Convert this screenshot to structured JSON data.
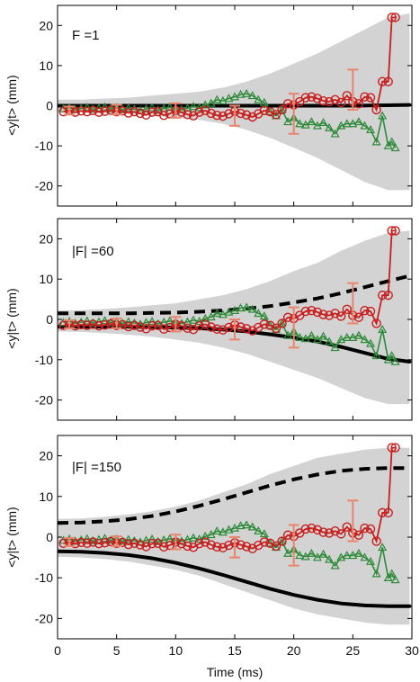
{
  "chart_data": {
    "type": "line",
    "xlabel": "Time (ms)",
    "ylabel": "<y|t> (mm)",
    "xlim": [
      0,
      30
    ],
    "ylim": [
      -25,
      25
    ],
    "x_ticks": [
      0,
      5,
      10,
      15,
      20,
      25,
      30
    ],
    "y_ticks": [
      -20,
      -10,
      0,
      10,
      20
    ],
    "grid": false,
    "colors": {
      "envelope": "#d3d3d3",
      "red_series": "#c81e1e",
      "green_series": "#2e8b3a",
      "error_bars": "#e8856b",
      "black_lines": "#000000"
    },
    "errorbars": {
      "x": [
        1,
        5,
        10,
        15,
        20,
        25
      ],
      "y": [
        -1.2,
        -1.0,
        -1.2,
        -2.5,
        -2,
        4
      ],
      "err": [
        1,
        1.2,
        1.8,
        2.5,
        5,
        5
      ]
    },
    "red_series": {
      "x": [
        0.5,
        1,
        1.5,
        2,
        2.5,
        3,
        3.5,
        4,
        4.5,
        5,
        5.5,
        6,
        6.5,
        7,
        7.5,
        8,
        8.5,
        9,
        9.5,
        10,
        10.5,
        11,
        11.5,
        12,
        12.5,
        13,
        13.5,
        14,
        14.5,
        15,
        15.5,
        16,
        16.5,
        17,
        17.5,
        18,
        18.5,
        19,
        19.5,
        20,
        20.5,
        21,
        21.5,
        22,
        22.5,
        23,
        23.5,
        24,
        24.5,
        25,
        25.5,
        26,
        26.5,
        27,
        27.5,
        28,
        28.3,
        28.6
      ],
      "y": [
        -1.5,
        -1.2,
        -1.6,
        -1.3,
        -1.5,
        -1.2,
        -1.6,
        -1.4,
        -1.1,
        -1.5,
        -1.3,
        -1.8,
        -1.5,
        -1.9,
        -2.3,
        -1.6,
        -1.5,
        -2.4,
        -2.0,
        -1.2,
        -1.6,
        -2.2,
        -2.5,
        -1.6,
        -1.2,
        -1.9,
        -2.4,
        -2.6,
        -2.0,
        -1.4,
        -1.9,
        -2.3,
        -2.8,
        -2.0,
        -1.2,
        -1.5,
        -2.2,
        -1.0,
        0.5,
        0.2,
        1.0,
        2.0,
        2.2,
        1.8,
        1.2,
        1.0,
        1.5,
        0.8,
        2.5,
        1.0,
        0.5,
        2.2,
        2.0,
        -1.0,
        6.0,
        6.0,
        22.0,
        22.0
      ]
    },
    "green_series": {
      "x": [
        0.5,
        1,
        1.5,
        2,
        2.5,
        3,
        3.5,
        4,
        4.5,
        5,
        5.5,
        6,
        6.5,
        7,
        7.5,
        8,
        8.5,
        9,
        9.5,
        10,
        10.5,
        11,
        11.5,
        12,
        12.5,
        13,
        13.5,
        14,
        14.5,
        15,
        15.5,
        16,
        16.5,
        17,
        17.5,
        18,
        18.5,
        19,
        19.5,
        20,
        20.5,
        21,
        21.5,
        22,
        22.5,
        23,
        23.5,
        24,
        24.5,
        25,
        25.5,
        26,
        26.5,
        27,
        27.5,
        28,
        28.3,
        28.6
      ],
      "y": [
        -0.8,
        -0.5,
        -1.0,
        -0.7,
        -0.4,
        -0.9,
        -0.6,
        -0.3,
        -0.8,
        -0.5,
        -1.0,
        -0.6,
        -0.9,
        -1.2,
        -0.8,
        -0.5,
        -1.1,
        -0.7,
        -0.4,
        -0.9,
        -1.0,
        -0.6,
        -0.2,
        -0.5,
        0.2,
        0.6,
        1.5,
        1.2,
        1.8,
        2.2,
        2.8,
        3.0,
        2.5,
        1.5,
        0.8,
        -1.5,
        -2.5,
        -1.0,
        -4.0,
        -3.0,
        -4.5,
        -4.8,
        -4.0,
        -5.0,
        -4.2,
        -5.5,
        -7.0,
        -5.0,
        -4.5,
        -4.5,
        -4.0,
        -5.0,
        -6.0,
        -9.0,
        -2.5,
        -10.0,
        -9.0,
        -10.5
      ]
    },
    "panels": [
      {
        "label": "F =1",
        "envelope": {
          "x": [
            0,
            2,
            4,
            6,
            8,
            10,
            12,
            14,
            16,
            18,
            20,
            22,
            24,
            26,
            28,
            29.8
          ],
          "upper": [
            1.5,
            1.5,
            1.8,
            2,
            2.5,
            3,
            3.5,
            4.5,
            6,
            8,
            10.5,
            13,
            16,
            19,
            22,
            23
          ],
          "lower": [
            -1.5,
            -1.5,
            -1.8,
            -2,
            -2.5,
            -3,
            -3.5,
            -4.5,
            -6,
            -8,
            -10.5,
            -13,
            -16,
            -19,
            -21,
            -21
          ]
        },
        "black_solid": {
          "x": [
            0,
            5,
            10,
            15,
            20,
            25,
            29.8
          ],
          "y": [
            0,
            0,
            0,
            0,
            0,
            0,
            0.2
          ]
        },
        "black_dashed": null
      },
      {
        "label": "|F| =60",
        "envelope": {
          "x": [
            0,
            2,
            4,
            6,
            8,
            10,
            12,
            14,
            16,
            18,
            20,
            22,
            24,
            26,
            28,
            29.8
          ],
          "upper": [
            2.2,
            2.3,
            2.6,
            3.0,
            3.5,
            4,
            5,
            6,
            7.5,
            9.5,
            12,
            14,
            17,
            19.5,
            21.5,
            22
          ],
          "lower": [
            -3,
            -3.1,
            -3.4,
            -3.8,
            -4.3,
            -5,
            -5.8,
            -7,
            -8.5,
            -10.5,
            -12.5,
            -14.5,
            -17,
            -19.5,
            -21,
            -21
          ]
        },
        "black_solid": {
          "x": [
            0,
            2,
            4,
            6,
            8,
            10,
            12,
            14,
            16,
            18,
            20,
            22,
            24,
            26,
            28,
            29.8
          ],
          "y": [
            -1.8,
            -1.8,
            -1.8,
            -1.8,
            -1.9,
            -2.0,
            -2.2,
            -2.5,
            -3.0,
            -3.7,
            -4.5,
            -5.5,
            -6.8,
            -8.3,
            -9.8,
            -10.5
          ]
        },
        "black_dashed": {
          "x": [
            0,
            2,
            4,
            6,
            8,
            10,
            12,
            14,
            16,
            18,
            20,
            22,
            24,
            26,
            28,
            29.8
          ],
          "y": [
            1.5,
            1.5,
            1.5,
            1.5,
            1.6,
            1.7,
            1.9,
            2.2,
            2.7,
            3.3,
            4.2,
            5.2,
            6.5,
            8.0,
            9.5,
            10.8
          ]
        }
      },
      {
        "label": "|F| =150",
        "envelope": {
          "x": [
            0,
            2,
            4,
            6,
            8,
            10,
            12,
            14,
            16,
            18,
            20,
            22,
            24,
            26,
            28,
            29.8
          ],
          "upper": [
            4.5,
            4.6,
            5,
            5.6,
            6.4,
            7.5,
            9,
            11,
            13,
            15.5,
            17.5,
            19.5,
            20.5,
            21.5,
            22,
            22
          ],
          "lower": [
            -4.8,
            -5,
            -5.4,
            -6,
            -7,
            -8,
            -9.5,
            -11.5,
            -13.5,
            -15.5,
            -17.5,
            -19,
            -20,
            -21,
            -21.5,
            -21.5
          ]
        },
        "black_solid": {
          "x": [
            0,
            2,
            4,
            6,
            8,
            10,
            12,
            14,
            16,
            18,
            20,
            22,
            24,
            26,
            28,
            29.8
          ],
          "y": [
            -3.5,
            -3.6,
            -3.9,
            -4.4,
            -5.2,
            -6.3,
            -7.7,
            -9.3,
            -11.0,
            -12.7,
            -14.2,
            -15.4,
            -16.3,
            -16.8,
            -17.0,
            -17.0
          ]
        },
        "black_dashed": {
          "x": [
            0,
            2,
            4,
            6,
            8,
            10,
            12,
            14,
            16,
            18,
            20,
            22,
            24,
            26,
            28,
            29.8
          ],
          "y": [
            3.5,
            3.6,
            3.9,
            4.4,
            5.2,
            6.3,
            7.7,
            9.3,
            11.0,
            12.7,
            14.2,
            15.4,
            16.3,
            16.8,
            17.0,
            17.0
          ]
        }
      }
    ]
  }
}
